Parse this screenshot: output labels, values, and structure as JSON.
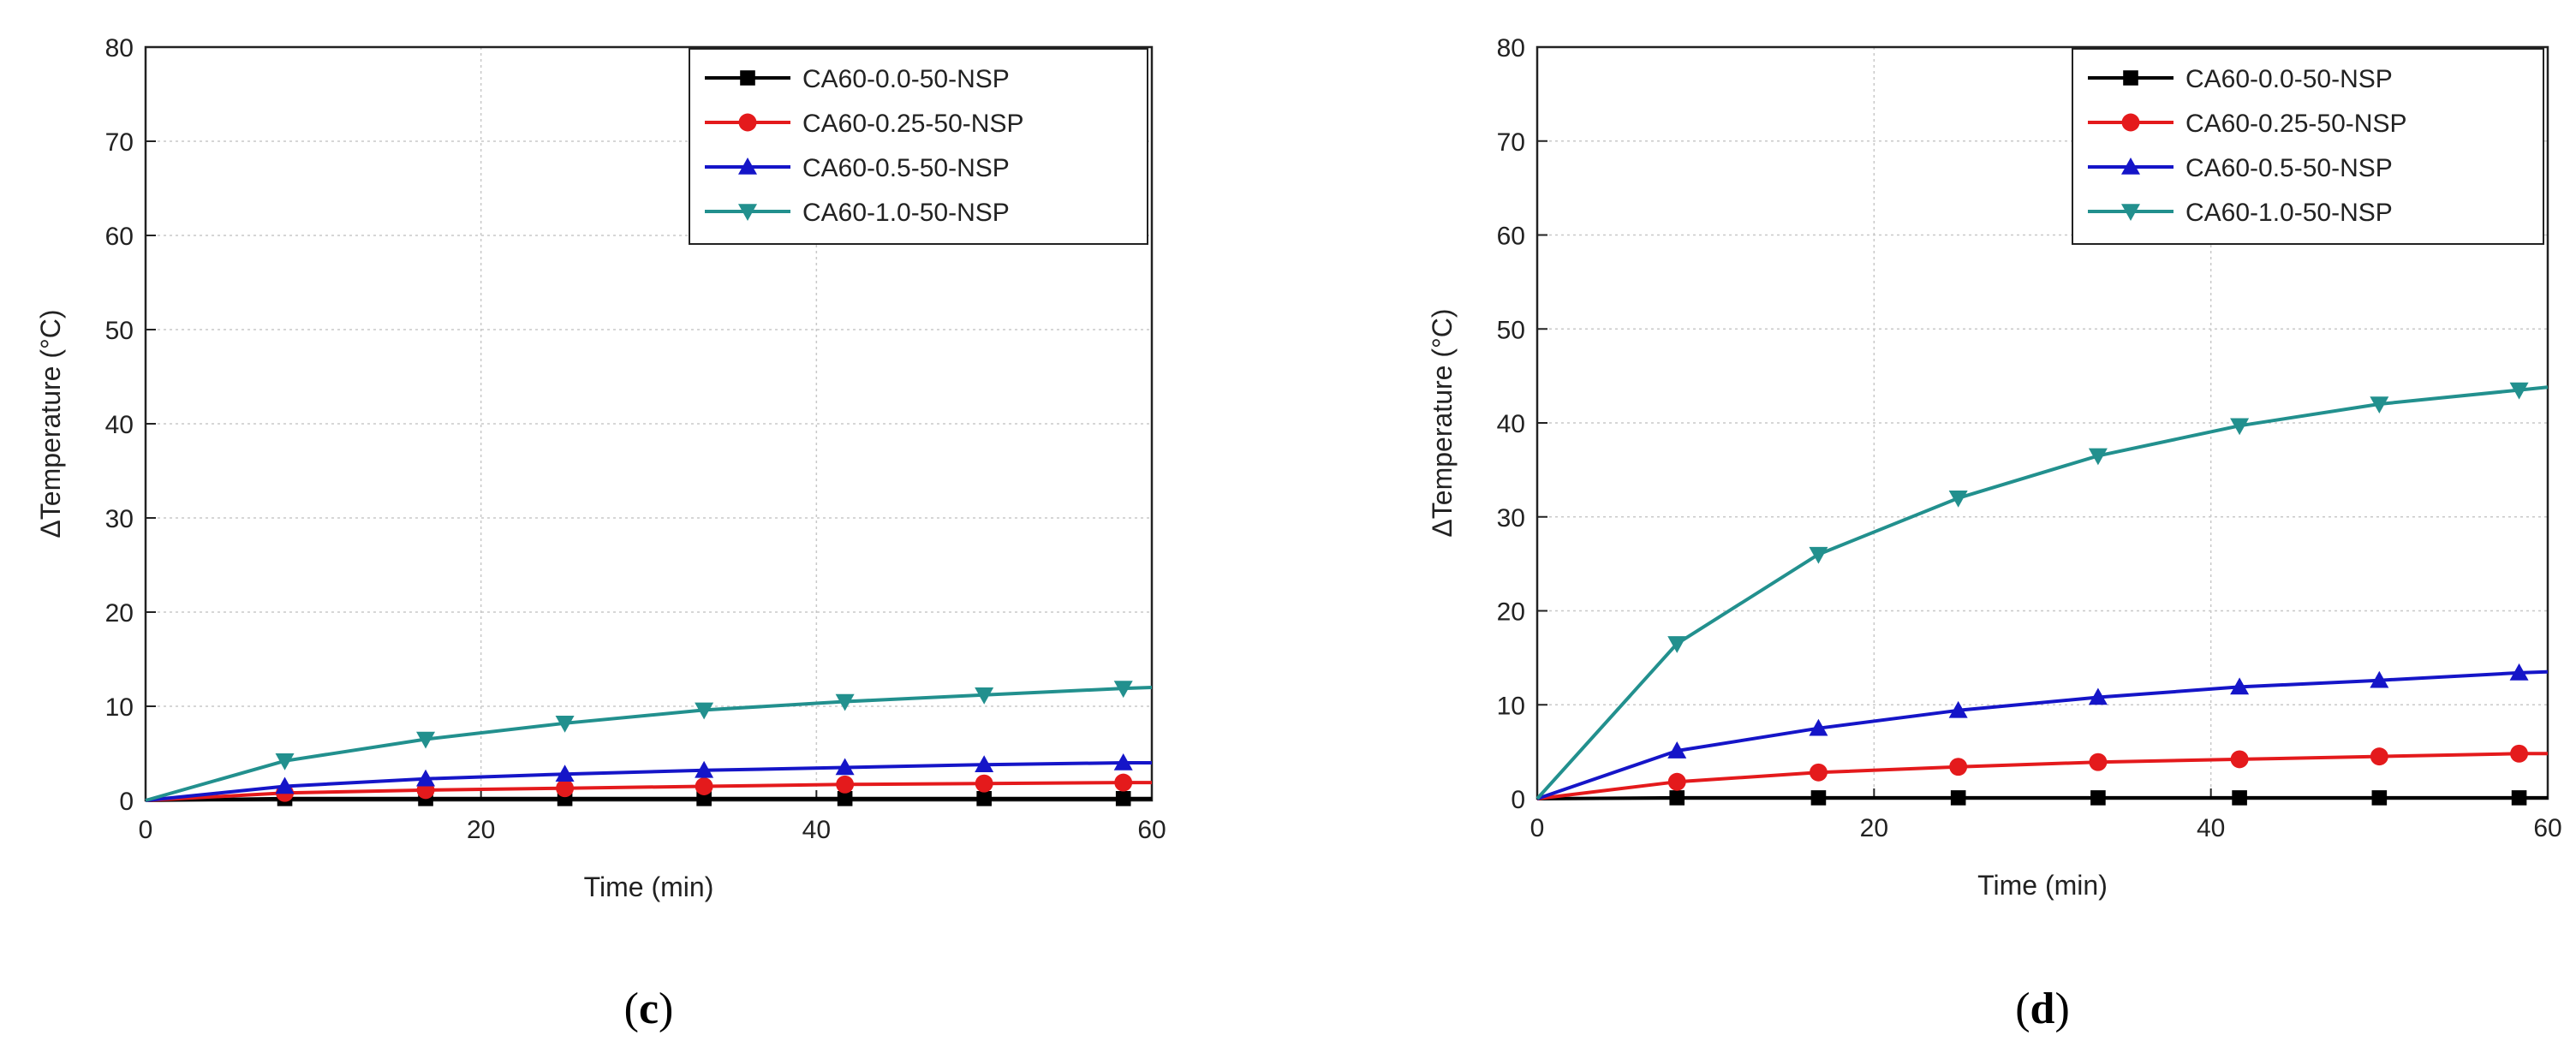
{
  "chart_data": [
    {
      "type": "line",
      "panel_label": "c",
      "title": "",
      "xlabel": "Time (min)",
      "ylabel": "ΔTemperature (°C)",
      "xlim": [
        0,
        60
      ],
      "ylim": [
        0,
        80
      ],
      "xticks": [
        "0",
        "20",
        "40",
        "60"
      ],
      "yticks": [
        "0",
        "10",
        "20",
        "30",
        "40",
        "50",
        "60",
        "70",
        "80"
      ],
      "grid": true,
      "legend_position": "top-right",
      "series": [
        {
          "name": "CA60-0.0-50-NSP",
          "color": "#000000",
          "marker": "square",
          "x": [
            0,
            8.3,
            16.7,
            25,
            33.3,
            41.7,
            50,
            58.3,
            60
          ],
          "y": [
            0,
            0.2,
            0.2,
            0.2,
            0.2,
            0.2,
            0.2,
            0.2,
            0.2
          ]
        },
        {
          "name": "CA60-0.25-50-NSP",
          "color": "#e41a1c",
          "marker": "circle",
          "x": [
            0,
            8.3,
            16.7,
            25,
            33.3,
            41.7,
            50,
            58.3,
            60
          ],
          "y": [
            0,
            0.8,
            1.1,
            1.3,
            1.5,
            1.7,
            1.8,
            1.9,
            1.9
          ]
        },
        {
          "name": "CA60-0.5-50-NSP",
          "color": "#1515c8",
          "marker": "triangle-up",
          "x": [
            0,
            8.3,
            16.7,
            25,
            33.3,
            41.7,
            50,
            58.3,
            60
          ],
          "y": [
            0,
            1.5,
            2.3,
            2.8,
            3.2,
            3.5,
            3.8,
            4.0,
            4.0
          ]
        },
        {
          "name": "CA60-1.0-50-NSP",
          "color": "#22908e",
          "marker": "triangle-down",
          "x": [
            0,
            8.3,
            16.7,
            25,
            33.3,
            41.7,
            50,
            58.3,
            60
          ],
          "y": [
            0,
            4.2,
            6.5,
            8.2,
            9.6,
            10.5,
            11.2,
            11.9,
            12.0
          ]
        }
      ]
    },
    {
      "type": "line",
      "panel_label": "d",
      "title": "",
      "xlabel": "Time (min)",
      "ylabel": "ΔTemperature (°C)",
      "xlim": [
        0,
        60
      ],
      "ylim": [
        0,
        80
      ],
      "xticks": [
        "0",
        "20",
        "40",
        "60"
      ],
      "yticks": [
        "0",
        "10",
        "20",
        "30",
        "40",
        "50",
        "60",
        "70",
        "80"
      ],
      "grid": true,
      "legend_position": "top-right",
      "series": [
        {
          "name": "CA60-0.0-50-NSP",
          "color": "#000000",
          "marker": "square",
          "x": [
            0,
            8.3,
            16.7,
            25,
            33.3,
            41.7,
            50,
            58.3,
            60
          ],
          "y": [
            0,
            0.1,
            0.1,
            0.1,
            0.1,
            0.1,
            0.1,
            0.1,
            0.1
          ]
        },
        {
          "name": "CA60-0.25-50-NSP",
          "color": "#e41a1c",
          "marker": "circle",
          "x": [
            0,
            8.3,
            16.7,
            25,
            33.3,
            41.7,
            50,
            58.3,
            60
          ],
          "y": [
            0,
            1.8,
            2.8,
            3.4,
            3.9,
            4.2,
            4.5,
            4.8,
            4.8
          ]
        },
        {
          "name": "CA60-0.5-50-NSP",
          "color": "#1515c8",
          "marker": "triangle-up",
          "x": [
            0,
            8.3,
            16.7,
            25,
            33.3,
            41.7,
            50,
            58.3,
            60
          ],
          "y": [
            0,
            5.1,
            7.5,
            9.4,
            10.8,
            11.9,
            12.6,
            13.4,
            13.5
          ]
        },
        {
          "name": "CA60-1.0-50-NSP",
          "color": "#22908e",
          "marker": "triangle-down",
          "x": [
            0,
            8.3,
            16.7,
            25,
            33.3,
            41.7,
            50,
            58.3,
            60
          ],
          "y": [
            0,
            16.5,
            26.0,
            32.0,
            36.5,
            39.7,
            42.0,
            43.5,
            43.8
          ]
        }
      ]
    }
  ]
}
